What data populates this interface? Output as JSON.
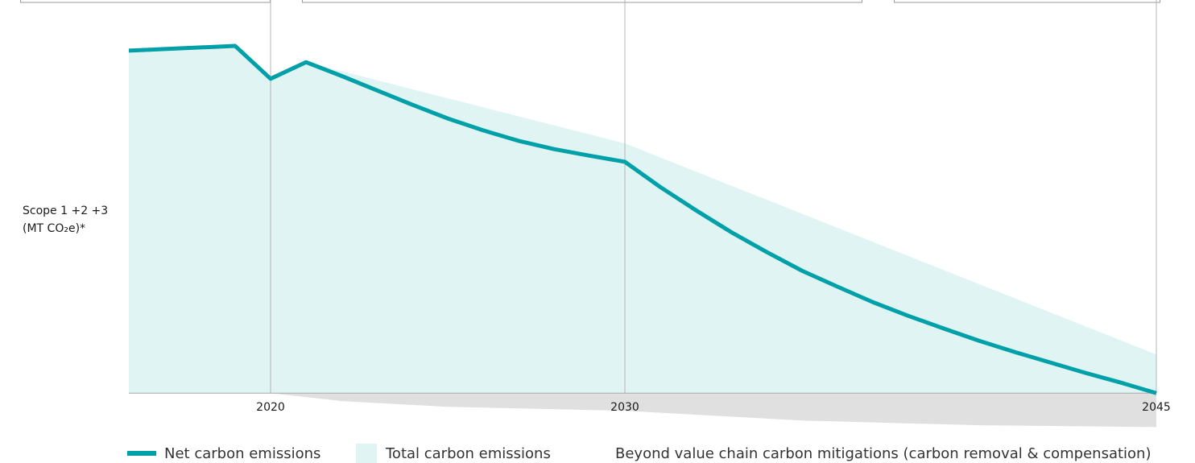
{
  "chart_data": {
    "type": "area",
    "y_label": [
      "Scope 1 +2 +3",
      "(MT CO₂e)*"
    ],
    "xlim": [
      2016,
      2045
    ],
    "xticks": [
      2020,
      2030,
      2045
    ],
    "ylim": [
      -12,
      100
    ],
    "series": [
      {
        "name": "Total carbon emissions",
        "color": "#e0f4f4",
        "style": "area",
        "x": [
          2016,
          2019,
          2020,
          2021,
          2030,
          2045
        ],
        "values": [
          94.9,
          96.2,
          87.1,
          91.7,
          69.2,
          10.7
        ]
      },
      {
        "name": "Beyond value chain carbon mitigations (carbon removal & compensation)",
        "color": "#e0e0e0",
        "style": "area",
        "x": [
          2020,
          2022,
          2025,
          2030,
          2035,
          2040,
          2045
        ],
        "values": [
          0,
          -2.2,
          -3.8,
          -4.9,
          -7.6,
          -8.9,
          -9.4
        ]
      },
      {
        "name": "Net carbon emissions",
        "color": "#00a0a8",
        "style": "line",
        "x": [
          2016,
          2019,
          2020,
          2021,
          2022,
          2023,
          2024,
          2025,
          2026,
          2027,
          2028,
          2029,
          2030,
          2031,
          2032,
          2033,
          2034,
          2035,
          2036,
          2037,
          2038,
          2039,
          2040,
          2041,
          2042,
          2043,
          2044,
          2045
        ],
        "values": [
          94.9,
          96.2,
          87.1,
          91.7,
          87.9,
          83.9,
          79.9,
          76.1,
          72.8,
          69.9,
          67.6,
          65.8,
          64.1,
          57.1,
          50.7,
          44.6,
          39.1,
          33.9,
          29.5,
          25.2,
          21.4,
          17.9,
          14.5,
          11.4,
          8.5,
          5.6,
          2.9,
          0
        ]
      }
    ]
  }
}
